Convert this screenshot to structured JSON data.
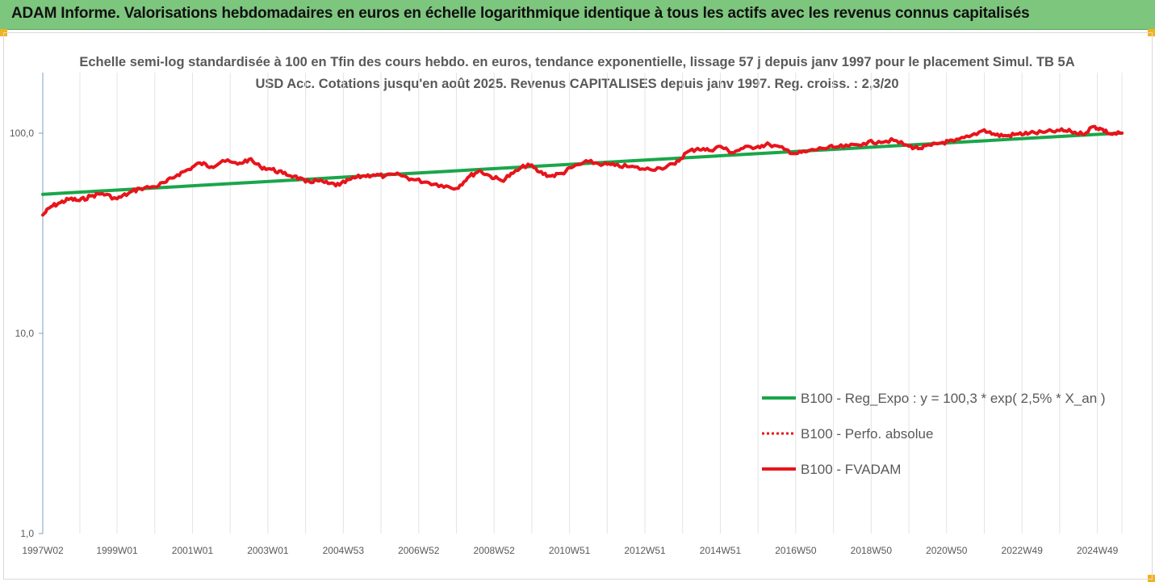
{
  "header": {
    "title": "ADAM Informe. Valorisations hebdomadaires en euros en échelle logarithmique identique à tous les actifs avec les revenus connus capitalisés"
  },
  "chart_data": {
    "type": "line",
    "title": "Echelle semi-log standardisée à 100 en Tfin des cours hebdo. en euros, tendance exponentielle, lissage 57 j depuis janv 1997 pour le placement Simul. TB 5A USD Acc. Cotations jusqu'en août 2025. Revenus CAPITALISES depuis janv 1997. Reg. croiss. : 2,3/20",
    "y_scale": "log",
    "ylim": [
      1,
      200
    ],
    "xlim": [
      1997.03,
      2025.65
    ],
    "yticks": [
      {
        "value": 1,
        "label": "1,0"
      },
      {
        "value": 10,
        "label": "10,0"
      },
      {
        "value": 100,
        "label": "100,0"
      }
    ],
    "xticks": [
      {
        "value": 1997.03,
        "label": "1997W02"
      },
      {
        "value": 1999.0,
        "label": "1999W01"
      },
      {
        "value": 2001.0,
        "label": "2001W01"
      },
      {
        "value": 2003.0,
        "label": "2003W01"
      },
      {
        "value": 2005.0,
        "label": "2004W53"
      },
      {
        "value": 2007.0,
        "label": "2006W52"
      },
      {
        "value": 2009.0,
        "label": "2008W52"
      },
      {
        "value": 2011.0,
        "label": "2010W51"
      },
      {
        "value": 2013.0,
        "label": "2012W51"
      },
      {
        "value": 2015.0,
        "label": "2014W51"
      },
      {
        "value": 2017.0,
        "label": "2016W50"
      },
      {
        "value": 2019.0,
        "label": "2018W50"
      },
      {
        "value": 2021.0,
        "label": "2020W50"
      },
      {
        "value": 2023.0,
        "label": "2022W49"
      },
      {
        "value": 2025.0,
        "label": "2024W49"
      }
    ],
    "grid": "vertical",
    "legend_position": "right",
    "series": [
      {
        "name": "B100 - Reg_Expo : y = 100,3 * exp( 2,5% *  X_an )",
        "color": "#1aa64a",
        "style": "solid",
        "x": [
          1997.03,
          2025.65
        ],
        "y": [
          49.5,
          100.3
        ]
      },
      {
        "name": "B100 - Perfo. absolue",
        "color": "#e8141b",
        "style": "dotted",
        "x": [],
        "y": []
      },
      {
        "name": "B100 - FVADAM",
        "color": "#e8141b",
        "style": "solid",
        "x": [
          1997.03,
          1997.25,
          1997.5,
          1997.75,
          1998.0,
          1998.3,
          1998.6,
          1999.0,
          1999.3,
          1999.6,
          2000.0,
          2000.3,
          2000.6,
          2000.9,
          2001.2,
          2001.5,
          2001.8,
          2002.2,
          2002.5,
          2002.8,
          2003.1,
          2003.4,
          2003.7,
          2004.0,
          2004.3,
          2004.6,
          2004.9,
          2005.2,
          2005.5,
          2005.8,
          2006.1,
          2006.5,
          2006.8,
          2007.2,
          2007.6,
          2008.0,
          2008.3,
          2008.6,
          2008.9,
          2009.2,
          2009.5,
          2009.9,
          2010.2,
          2010.5,
          2010.8,
          2011.1,
          2011.5,
          2011.9,
          2012.2,
          2012.6,
          2013.0,
          2013.4,
          2013.8,
          2014.1,
          2014.4,
          2014.7,
          2015.0,
          2015.3,
          2015.6,
          2016.0,
          2016.3,
          2016.7,
          2017.0,
          2017.3,
          2017.7,
          2018.0,
          2018.4,
          2018.8,
          2019.2,
          2019.6,
          2020.0,
          2020.3,
          2020.6,
          2020.9,
          2021.2,
          2021.6,
          2022.0,
          2022.3,
          2022.6,
          2022.9,
          2023.2,
          2023.6,
          2024.0,
          2024.3,
          2024.6,
          2024.9,
          2025.1,
          2025.35,
          2025.65
        ],
        "y": [
          39,
          43,
          45,
          47,
          46,
          48.5,
          50,
          47,
          50,
          53,
          54,
          57,
          62,
          66,
          71,
          68,
          73,
          70,
          74,
          68,
          66,
          63,
          61,
          57,
          58,
          56,
          55,
          59,
          61,
          62,
          61,
          62,
          59,
          57,
          55,
          53,
          60,
          65,
          61,
          58,
          63,
          70,
          64,
          61,
          63,
          68,
          72,
          70,
          69,
          68,
          66,
          67,
          70,
          80,
          84,
          82,
          86,
          80,
          84,
          86,
          88,
          83,
          79,
          81,
          84,
          85,
          86,
          89,
          91,
          92,
          86,
          84,
          87,
          90,
          91,
          96,
          104,
          98,
          97,
          99,
          100,
          101,
          103,
          102,
          99,
          108,
          105,
          99,
          100
        ]
      }
    ]
  }
}
